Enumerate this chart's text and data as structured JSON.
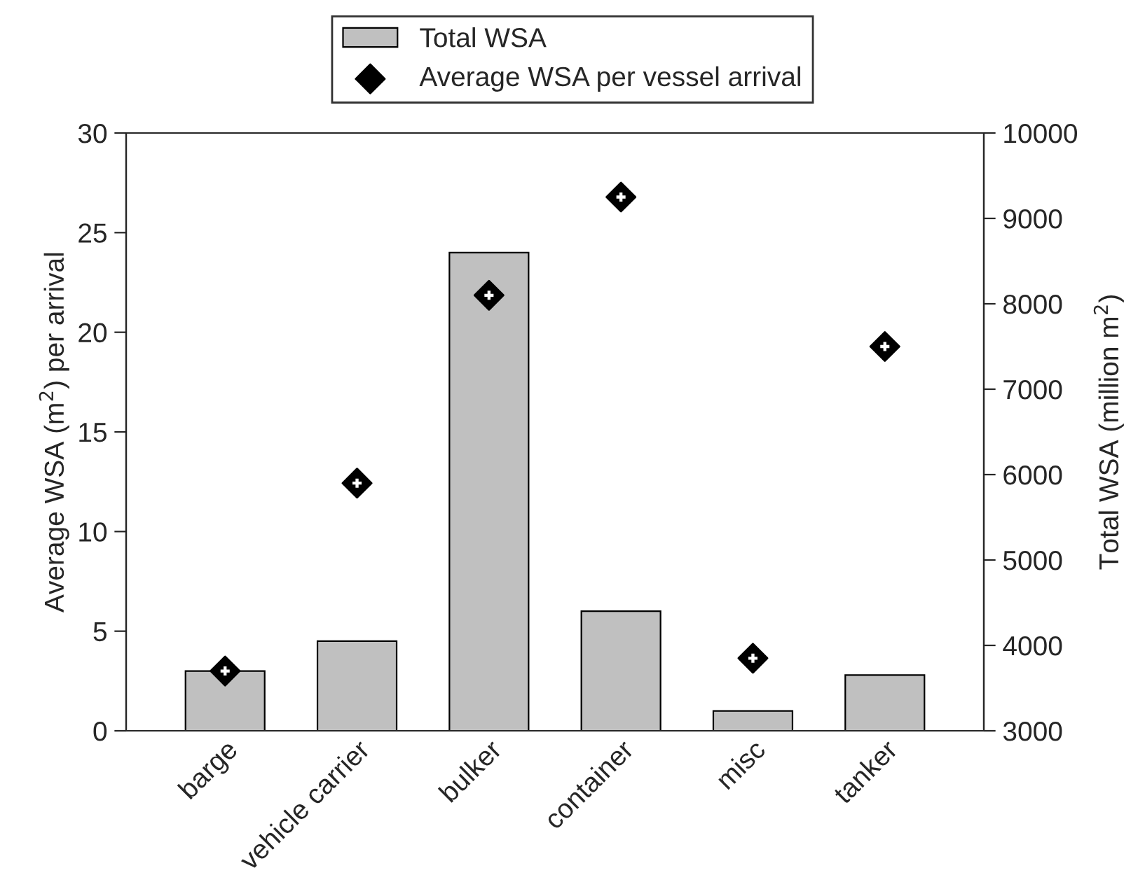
{
  "chart_data": {
    "type": "bar",
    "categories": [
      "barge",
      "vehicle carrier",
      "bulker",
      "container",
      "misc",
      "tanker"
    ],
    "ylabel": "Average WSA (m$^{2}$) per arrival",
    "y2label": "Total WSA (million m$^{2}$)",
    "ylim": [
      0,
      30
    ],
    "yticks": [
      0,
      5,
      10,
      15,
      20,
      25,
      30
    ],
    "y2lim": [
      3000,
      10000
    ],
    "y2ticks": [
      3000,
      4000,
      5000,
      6000,
      7000,
      8000,
      9000,
      10000
    ],
    "series": [
      {
        "name": "Total WSA",
        "color": "#c0c0c0",
        "values": [
          3,
          4.5,
          24,
          6,
          1,
          2.8
        ]
      },
      {
        "name": "Average WSA per vessel arrival",
        "type": "scatter",
        "axis": "y2",
        "color": "#000000",
        "marker": "diamond",
        "values": [
          3700,
          5900,
          8100,
          9250,
          3850,
          7500
        ]
      }
    ],
    "legend": "top",
    "grid": false
  }
}
